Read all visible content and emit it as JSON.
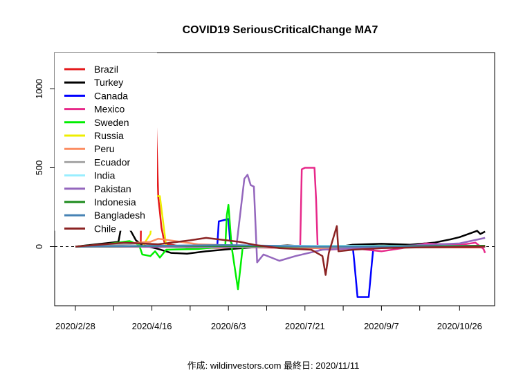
{
  "chart_data": {
    "type": "line",
    "title": "COVID19 SeriousCriticalChange MA7",
    "xlabel": "",
    "ylabel": "",
    "x_range": [
      "2020-02-15",
      "2020-11-17"
    ],
    "ylim": [
      -375,
      1230
    ],
    "x_ticks": [
      {
        "date": "2020-02-28",
        "label": "2020/2/28"
      },
      {
        "date": "2020-04-16",
        "label": "2020/4/16"
      },
      {
        "date": "2020-06-03",
        "label": "2020/6/3"
      },
      {
        "date": "2020-07-21",
        "label": "2020/7/21"
      },
      {
        "date": "2020-09-07",
        "label": "2020/9/7"
      },
      {
        "date": "2020-10-26",
        "label": "2020/10/26"
      }
    ],
    "y_ticks": [
      0,
      500,
      1000
    ],
    "grid": false,
    "reference_line": {
      "y": 0,
      "style": "dashed"
    },
    "legend_position": "top-left",
    "series": [
      {
        "name": "Brazil",
        "color": "#e41a1c",
        "points": [
          [
            "2020-02-28",
            0
          ],
          [
            "2020-03-25",
            0
          ],
          [
            "2020-04-08",
            0
          ],
          [
            "2020-04-09",
            0
          ],
          [
            "2020-04-10",
            900
          ],
          [
            "2020-04-13",
            900
          ],
          [
            "2020-04-14",
            1080
          ],
          [
            "2020-04-15",
            1135
          ],
          [
            "2020-04-16",
            1145
          ],
          [
            "2020-04-18",
            1000
          ],
          [
            "2020-04-19",
            640
          ],
          [
            "2020-04-20",
            310
          ],
          [
            "2020-04-21",
            220
          ],
          [
            "2020-04-22",
            120
          ],
          [
            "2020-04-24",
            20
          ],
          [
            "2020-05-10",
            -10
          ],
          [
            "2020-06-15",
            -5
          ],
          [
            "2020-08-01",
            -10
          ],
          [
            "2020-09-15",
            -5
          ],
          [
            "2020-11-10",
            -5
          ]
        ]
      },
      {
        "name": "Turkey",
        "color": "#000000",
        "points": [
          [
            "2020-02-28",
            0
          ],
          [
            "2020-03-26",
            30
          ],
          [
            "2020-03-28",
            140
          ],
          [
            "2020-03-31",
            140
          ],
          [
            "2020-04-03",
            95
          ],
          [
            "2020-04-06",
            40
          ],
          [
            "2020-04-10",
            10
          ],
          [
            "2020-04-20",
            -15
          ],
          [
            "2020-04-28",
            -40
          ],
          [
            "2020-05-08",
            -45
          ],
          [
            "2020-05-20",
            -30
          ],
          [
            "2020-06-05",
            -15
          ],
          [
            "2020-06-25",
            0
          ],
          [
            "2020-07-10",
            8
          ],
          [
            "2020-07-25",
            0
          ],
          [
            "2020-08-05",
            -10
          ],
          [
            "2020-08-20",
            12
          ],
          [
            "2020-09-07",
            18
          ],
          [
            "2020-09-25",
            12
          ],
          [
            "2020-10-10",
            25
          ],
          [
            "2020-10-20",
            45
          ],
          [
            "2020-10-26",
            60
          ],
          [
            "2020-11-02",
            85
          ],
          [
            "2020-11-06",
            100
          ],
          [
            "2020-11-08",
            80
          ],
          [
            "2020-11-11",
            95
          ]
        ]
      },
      {
        "name": "Canada",
        "color": "#0000ff",
        "points": [
          [
            "2020-02-28",
            0
          ],
          [
            "2020-05-20",
            0
          ],
          [
            "2020-05-27",
            0
          ],
          [
            "2020-05-28",
            160
          ],
          [
            "2020-06-03",
            175
          ],
          [
            "2020-06-04",
            40
          ],
          [
            "2020-06-06",
            0
          ],
          [
            "2020-08-20",
            0
          ],
          [
            "2020-08-21",
            -100
          ],
          [
            "2020-08-23",
            -320
          ],
          [
            "2020-08-30",
            -320
          ],
          [
            "2020-09-01",
            -100
          ],
          [
            "2020-09-02",
            0
          ],
          [
            "2020-11-11",
            0
          ]
        ]
      },
      {
        "name": "Mexico",
        "color": "#e7298a",
        "points": [
          [
            "2020-02-28",
            0
          ],
          [
            "2020-07-15",
            -5
          ],
          [
            "2020-07-18",
            -5
          ],
          [
            "2020-07-19",
            490
          ],
          [
            "2020-07-21",
            500
          ],
          [
            "2020-07-27",
            500
          ],
          [
            "2020-07-28",
            300
          ],
          [
            "2020-07-29",
            -10
          ],
          [
            "2020-08-05",
            -20
          ],
          [
            "2020-08-20",
            -10
          ],
          [
            "2020-09-07",
            -30
          ],
          [
            "2020-09-20",
            -10
          ],
          [
            "2020-10-05",
            20
          ],
          [
            "2020-10-26",
            10
          ],
          [
            "2020-11-05",
            25
          ],
          [
            "2020-11-10",
            -15
          ],
          [
            "2020-11-11",
            -40
          ]
        ]
      },
      {
        "name": "Sweden",
        "color": "#00ee00",
        "points": [
          [
            "2020-02-28",
            0
          ],
          [
            "2020-03-18",
            15
          ],
          [
            "2020-04-02",
            35
          ],
          [
            "2020-04-08",
            10
          ],
          [
            "2020-04-10",
            -50
          ],
          [
            "2020-04-15",
            -60
          ],
          [
            "2020-04-18",
            -30
          ],
          [
            "2020-04-21",
            -70
          ],
          [
            "2020-04-25",
            -20
          ],
          [
            "2020-05-15",
            -15
          ],
          [
            "2020-06-01",
            0
          ],
          [
            "2020-06-02",
            200
          ],
          [
            "2020-06-03",
            265
          ],
          [
            "2020-06-05",
            0
          ],
          [
            "2020-06-09",
            -270
          ],
          [
            "2020-06-12",
            0
          ],
          [
            "2020-07-01",
            0
          ],
          [
            "2020-11-11",
            0
          ]
        ]
      },
      {
        "name": "Russia",
        "color": "#eeee00",
        "points": [
          [
            "2020-02-28",
            0
          ],
          [
            "2020-04-10",
            0
          ],
          [
            "2020-04-15",
            80
          ],
          [
            "2020-04-18",
            320
          ],
          [
            "2020-04-21",
            320
          ],
          [
            "2020-04-25",
            0
          ],
          [
            "2020-11-11",
            5
          ]
        ]
      },
      {
        "name": "Peru",
        "color": "#fc8d62",
        "points": [
          [
            "2020-02-28",
            0
          ],
          [
            "2020-04-15",
            30
          ],
          [
            "2020-04-20",
            50
          ],
          [
            "2020-05-15",
            15
          ],
          [
            "2020-08-01",
            -10
          ],
          [
            "2020-10-01",
            -5
          ],
          [
            "2020-11-11",
            0
          ]
        ]
      },
      {
        "name": "Ecuador",
        "color": "#a6a6a6",
        "points": [
          [
            "2020-02-28",
            0
          ],
          [
            "2020-04-10",
            20
          ],
          [
            "2020-05-01",
            -5
          ],
          [
            "2020-11-11",
            0
          ]
        ]
      },
      {
        "name": "India",
        "color": "#99eeff",
        "points": [
          [
            "2020-02-28",
            0
          ],
          [
            "2020-07-01",
            5
          ],
          [
            "2020-11-11",
            5
          ]
        ]
      },
      {
        "name": "Pakistan",
        "color": "#9467bd",
        "points": [
          [
            "2020-02-28",
            0
          ],
          [
            "2020-06-08",
            0
          ],
          [
            "2020-06-13",
            430
          ],
          [
            "2020-06-15",
            455
          ],
          [
            "2020-06-17",
            390
          ],
          [
            "2020-06-19",
            380
          ],
          [
            "2020-06-21",
            -100
          ],
          [
            "2020-06-25",
            -50
          ],
          [
            "2020-07-05",
            -90
          ],
          [
            "2020-07-15",
            -60
          ],
          [
            "2020-08-01",
            -20
          ],
          [
            "2020-09-01",
            -5
          ],
          [
            "2020-10-01",
            10
          ],
          [
            "2020-10-26",
            20
          ],
          [
            "2020-11-11",
            55
          ]
        ]
      },
      {
        "name": "Indonesia",
        "color": "#1b8a1b",
        "points": [
          [
            "2020-02-28",
            0
          ],
          [
            "2020-05-01",
            5
          ],
          [
            "2020-08-01",
            0
          ],
          [
            "2020-11-11",
            5
          ]
        ]
      },
      {
        "name": "Bangladesh",
        "color": "#4682b4",
        "points": [
          [
            "2020-02-28",
            0
          ],
          [
            "2020-06-01",
            10
          ],
          [
            "2020-08-01",
            0
          ],
          [
            "2020-11-11",
            0
          ]
        ]
      },
      {
        "name": "Chile",
        "color": "#8b2323",
        "points": [
          [
            "2020-02-28",
            0
          ],
          [
            "2020-03-30",
            25
          ],
          [
            "2020-04-20",
            15
          ],
          [
            "2020-05-10",
            40
          ],
          [
            "2020-05-20",
            55
          ],
          [
            "2020-06-10",
            30
          ],
          [
            "2020-06-20",
            10
          ],
          [
            "2020-07-05",
            -10
          ],
          [
            "2020-07-25",
            -20
          ],
          [
            "2020-08-01",
            -60
          ],
          [
            "2020-08-03",
            -180
          ],
          [
            "2020-08-05",
            -40
          ],
          [
            "2020-08-10",
            130
          ],
          [
            "2020-08-11",
            -30
          ],
          [
            "2020-08-20",
            -20
          ],
          [
            "2020-09-07",
            -10
          ],
          [
            "2020-10-01",
            -5
          ],
          [
            "2020-11-11",
            0
          ]
        ]
      }
    ]
  },
  "footer": {
    "credit": "作成: wildinvestors.com 最終日: 2020/11/11"
  }
}
